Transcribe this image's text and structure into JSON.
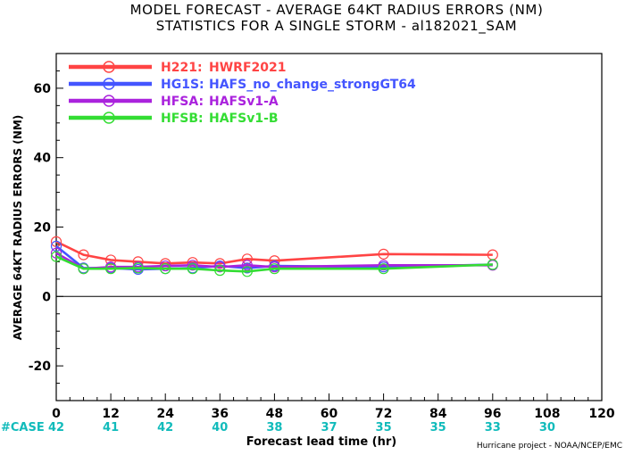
{
  "chart_data": {
    "type": "line",
    "title": "MODEL FORECAST - AVERAGE 64KT RADIUS ERRORS (NM)",
    "subtitle": "STATISTICS FOR A SINGLE STORM - al182021_SAM",
    "xlabel": "Forecast lead time (hr)",
    "ylabel": "AVERAGE 64KT RADIUS ERRORS (NM)",
    "xlim": [
      0,
      120
    ],
    "ylim": [
      -30,
      70
    ],
    "x_ticks": [
      0,
      12,
      24,
      36,
      48,
      60,
      72,
      84,
      96,
      108,
      120
    ],
    "y_ticks": [
      -20,
      0,
      20,
      40,
      60
    ],
    "legend_position": "top-left",
    "grid": false,
    "series": [
      {
        "name": "H221:",
        "label": "HWRF2021",
        "color": "#ff4444",
        "x": [
          0,
          6,
          12,
          18,
          24,
          30,
          36,
          42,
          48,
          72,
          96
        ],
        "values": [
          15.8,
          12,
          10.5,
          10,
          9.5,
          9.8,
          9.5,
          10.8,
          10.3,
          12.2,
          12
        ]
      },
      {
        "name": "HG1S:",
        "label": "HAFS_no_change_strongGT64",
        "color": "#4455ff",
        "x": [
          0,
          6,
          12,
          18,
          24,
          30,
          36,
          42,
          48,
          72,
          96
        ],
        "values": [
          14.5,
          8.2,
          8.2,
          7.8,
          8,
          8.2,
          8.8,
          8.2,
          8.8,
          8.5,
          9.2
        ]
      },
      {
        "name": "HFSA:",
        "label": "HAFSv1-A",
        "color": "#aa22dd",
        "x": [
          0,
          6,
          12,
          18,
          24,
          30,
          36,
          42,
          48,
          72,
          96
        ],
        "values": [
          12.5,
          8,
          8.5,
          8.5,
          8.8,
          9,
          8.5,
          9,
          8.5,
          9,
          9
        ]
      },
      {
        "name": "HFSB:",
        "label": "HAFSv1-B",
        "color": "#33dd33",
        "x": [
          0,
          6,
          12,
          18,
          24,
          30,
          36,
          42,
          48,
          72,
          96
        ],
        "values": [
          11.5,
          8,
          8,
          8.2,
          8,
          8,
          7.5,
          7.2,
          8,
          8,
          9.2
        ]
      }
    ],
    "case_label": "#CASE",
    "case_color": "#11bbbb",
    "case_x": [
      0,
      12,
      24,
      36,
      48,
      60,
      72,
      84,
      96,
      108
    ],
    "case_counts": [
      "42",
      "41",
      "42",
      "40",
      "38",
      "37",
      "35",
      "35",
      "33",
      "30"
    ],
    "credit": "Hurricane project - NOAA/NCEP/EMC"
  }
}
